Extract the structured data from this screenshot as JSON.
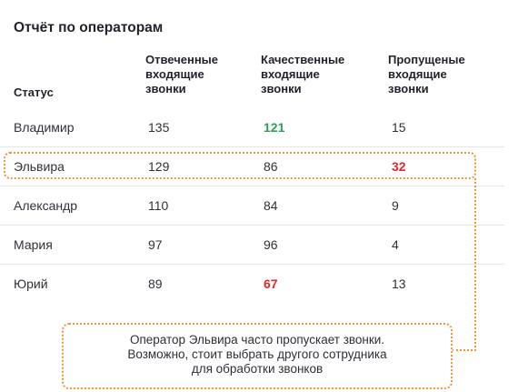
{
  "title": "Отчёт по операторам",
  "headers": {
    "status": "Статус",
    "answered": [
      "Отвеченные",
      "входящие",
      "звонки"
    ],
    "quality": [
      "Качественные",
      "входящие",
      "звонки"
    ],
    "missed": [
      "Пропущеные",
      "входящие",
      "звонки"
    ]
  },
  "rows": [
    {
      "name": "Владимир",
      "answered": "135",
      "quality": "121",
      "missed": "15"
    },
    {
      "name": "Эльвира",
      "answered": "129",
      "quality": "86",
      "missed": "32"
    },
    {
      "name": "Александр",
      "answered": "110",
      "quality": "84",
      "missed": "9"
    },
    {
      "name": "Мария",
      "answered": "97",
      "quality": "96",
      "missed": "4"
    },
    {
      "name": "Юрий",
      "answered": "89",
      "quality": "67",
      "missed": "13"
    }
  ],
  "colors": {
    "highlight_good": "#2f9e5a",
    "highlight_bad": "#e3262a",
    "annotation": "#f0953a"
  },
  "note": [
    "Оператор Эльвира часто пропускает звонки.",
    "Возможно, стоит выбрать другого сотрудника",
    "для обработки звонков"
  ]
}
